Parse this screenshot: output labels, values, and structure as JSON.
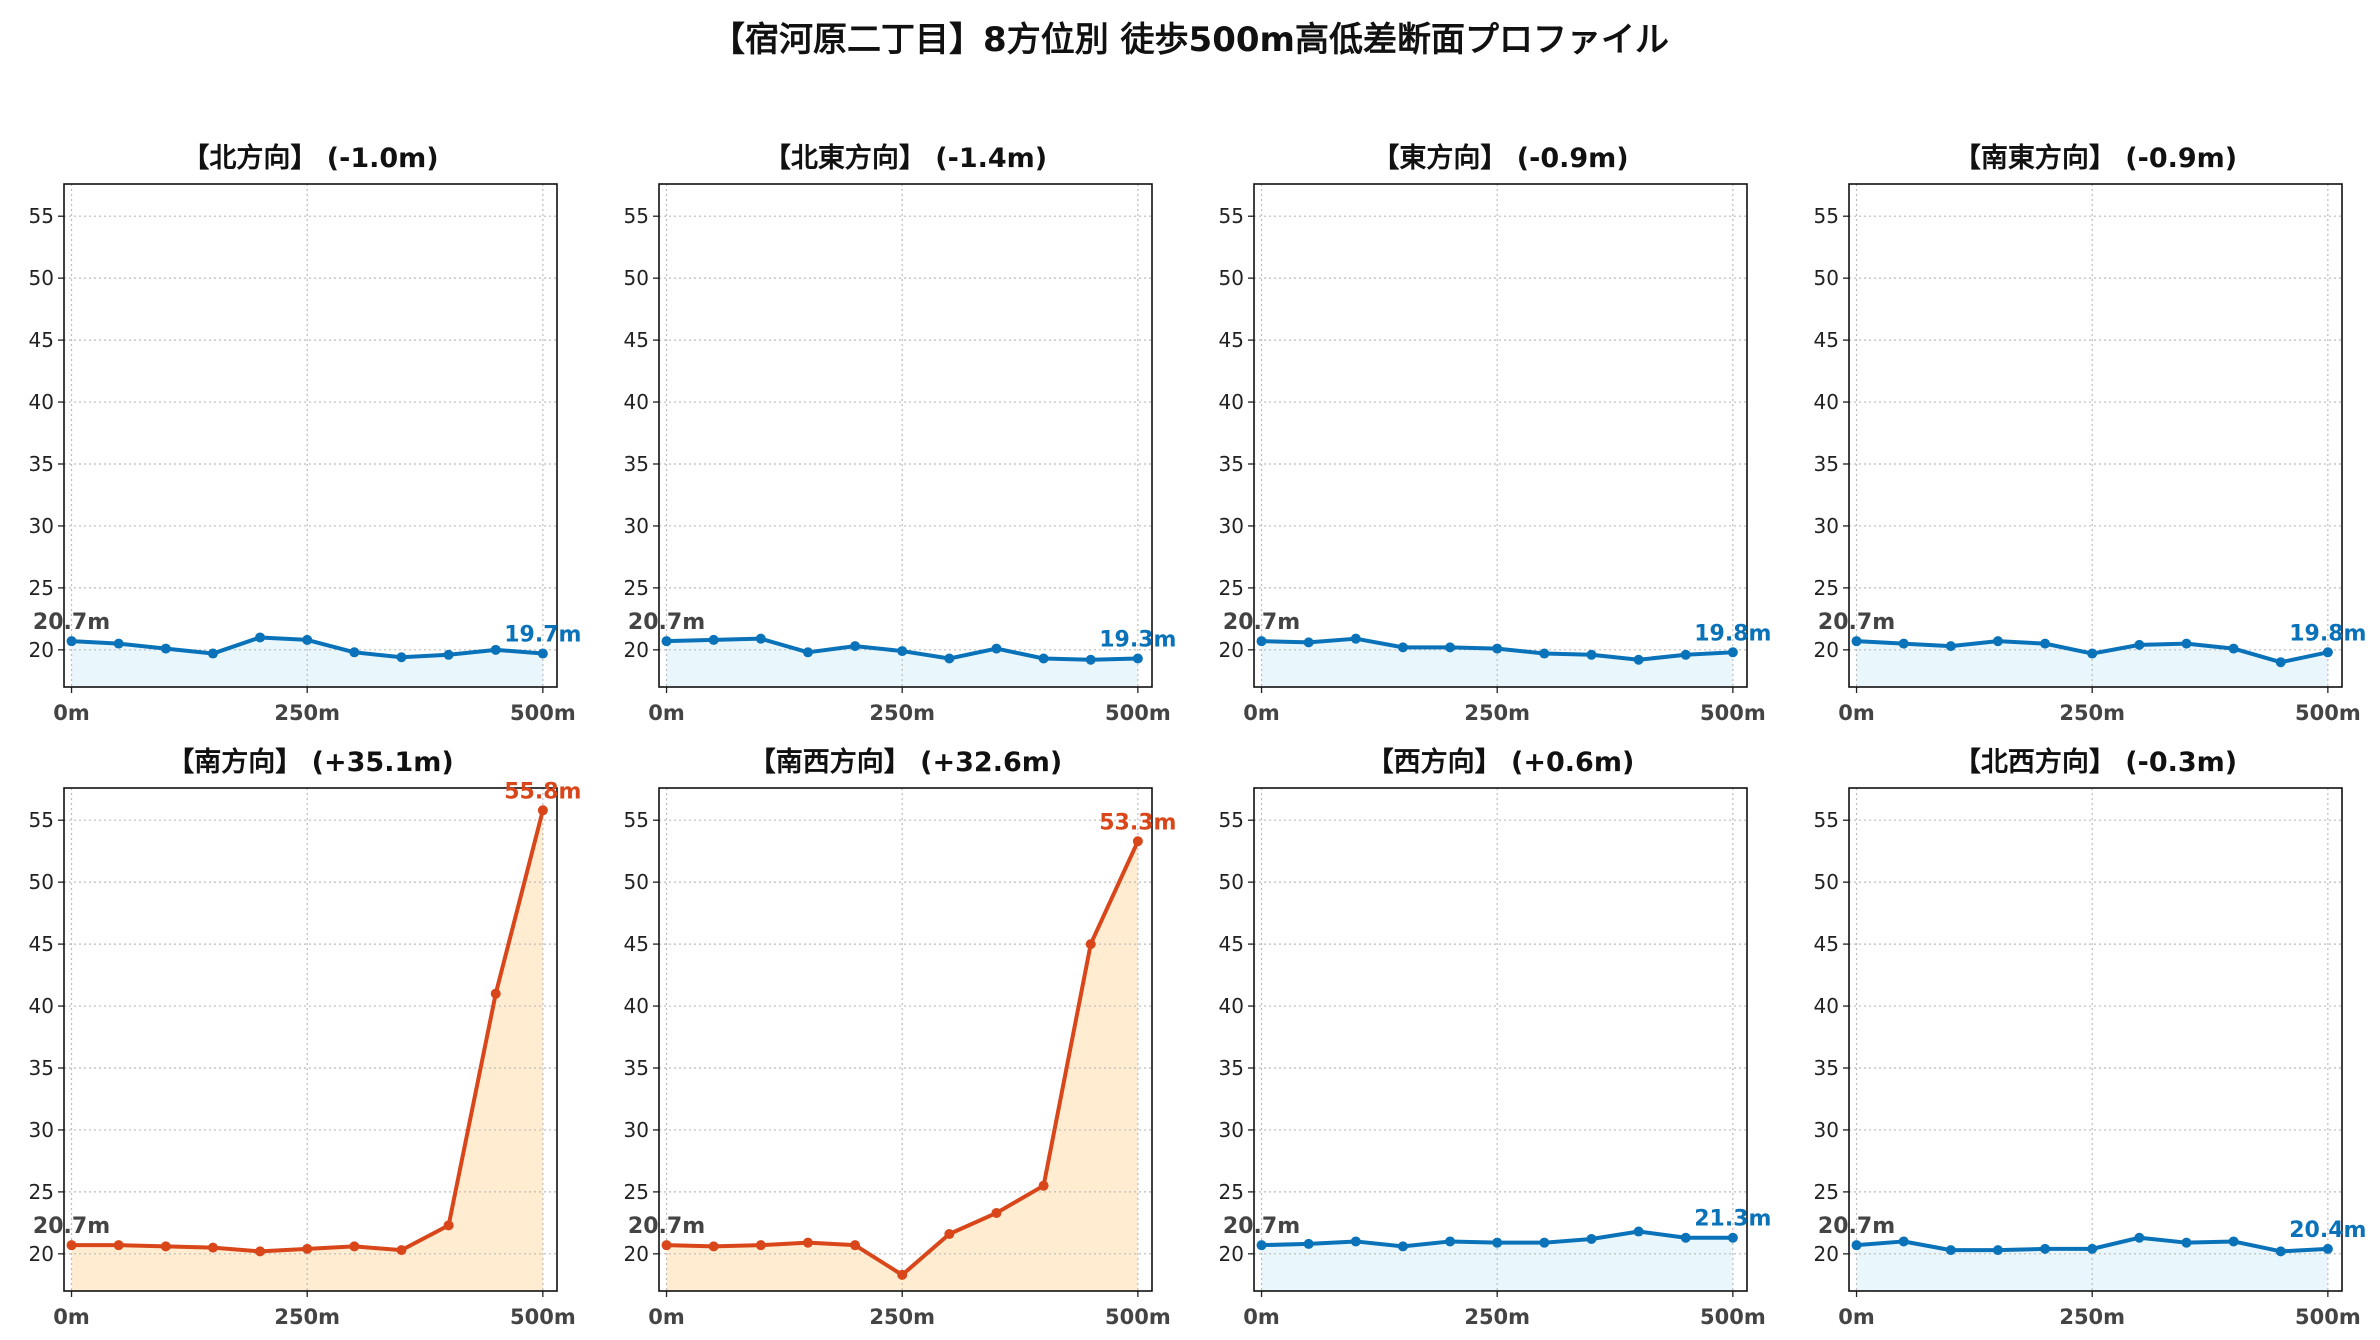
{
  "title": "【宿河原二丁目】8方位別 徒歩500m高低差断面プロファイル",
  "colors": {
    "flat_line": "#0a72b8",
    "flat_fill": "#e9f7fd",
    "steep_line": "#d8461a",
    "steep_fill": "#ffecd1",
    "start_label": "#444444",
    "grid": "#bbbbbb"
  },
  "chart_data": [
    {
      "type": "line",
      "title": "【北方向】 (-1.0m)",
      "x": [
        0,
        50,
        100,
        150,
        200,
        250,
        300,
        350,
        400,
        450,
        500
      ],
      "y": [
        20.7,
        20.5,
        20.1,
        19.7,
        21.0,
        20.8,
        19.8,
        19.4,
        19.6,
        20.0,
        19.7
      ],
      "xticks": [
        "0m",
        "250m",
        "500m"
      ],
      "yticks": [
        20,
        25,
        30,
        35,
        40,
        45,
        50,
        55
      ],
      "ylim": [
        17,
        57.6
      ],
      "xlim": [
        -8,
        515
      ],
      "start_label": "20.7m",
      "end_label": "19.7m",
      "style": "flat",
      "grid": true
    },
    {
      "type": "line",
      "title": "【北東方向】 (-1.4m)",
      "x": [
        0,
        50,
        100,
        150,
        200,
        250,
        300,
        350,
        400,
        450,
        500
      ],
      "y": [
        20.7,
        20.8,
        20.9,
        19.8,
        20.3,
        19.9,
        19.3,
        20.1,
        19.3,
        19.2,
        19.3
      ],
      "xticks": [
        "0m",
        "250m",
        "500m"
      ],
      "yticks": [
        20,
        25,
        30,
        35,
        40,
        45,
        50,
        55
      ],
      "ylim": [
        17,
        57.6
      ],
      "xlim": [
        -8,
        515
      ],
      "start_label": "20.7m",
      "end_label": "19.3m",
      "style": "flat",
      "grid": true
    },
    {
      "type": "line",
      "title": "【東方向】 (-0.9m)",
      "x": [
        0,
        50,
        100,
        150,
        200,
        250,
        300,
        350,
        400,
        450,
        500
      ],
      "y": [
        20.7,
        20.6,
        20.9,
        20.2,
        20.2,
        20.1,
        19.7,
        19.6,
        19.2,
        19.6,
        19.8
      ],
      "xticks": [
        "0m",
        "250m",
        "500m"
      ],
      "yticks": [
        20,
        25,
        30,
        35,
        40,
        45,
        50,
        55
      ],
      "ylim": [
        17,
        57.6
      ],
      "xlim": [
        -8,
        515
      ],
      "start_label": "20.7m",
      "end_label": "19.8m",
      "style": "flat",
      "grid": true
    },
    {
      "type": "line",
      "title": "【南東方向】 (-0.9m)",
      "x": [
        0,
        50,
        100,
        150,
        200,
        250,
        300,
        350,
        400,
        450,
        500
      ],
      "y": [
        20.7,
        20.5,
        20.3,
        20.7,
        20.5,
        19.7,
        20.4,
        20.5,
        20.1,
        19.0,
        19.8
      ],
      "xticks": [
        "0m",
        "250m",
        "500m"
      ],
      "yticks": [
        20,
        25,
        30,
        35,
        40,
        45,
        50,
        55
      ],
      "ylim": [
        17,
        57.6
      ],
      "xlim": [
        -8,
        515
      ],
      "start_label": "20.7m",
      "end_label": "19.8m",
      "style": "flat",
      "grid": true
    },
    {
      "type": "line",
      "title": "【南方向】 (+35.1m)",
      "x": [
        0,
        50,
        100,
        150,
        200,
        250,
        300,
        350,
        400,
        450,
        500
      ],
      "y": [
        20.7,
        20.7,
        20.6,
        20.5,
        20.2,
        20.4,
        20.6,
        20.3,
        22.3,
        41.0,
        55.8
      ],
      "xticks": [
        "0m",
        "250m",
        "500m"
      ],
      "yticks": [
        20,
        25,
        30,
        35,
        40,
        45,
        50,
        55
      ],
      "ylim": [
        17,
        57.6
      ],
      "xlim": [
        -8,
        515
      ],
      "start_label": "20.7m",
      "end_label": "55.8m",
      "style": "steep",
      "grid": true
    },
    {
      "type": "line",
      "title": "【南西方向】 (+32.6m)",
      "x": [
        0,
        50,
        100,
        150,
        200,
        250,
        300,
        350,
        400,
        450,
        500
      ],
      "y": [
        20.7,
        20.6,
        20.7,
        20.9,
        20.7,
        18.3,
        21.6,
        23.3,
        25.5,
        45.0,
        53.3
      ],
      "xticks": [
        "0m",
        "250m",
        "500m"
      ],
      "yticks": [
        20,
        25,
        30,
        35,
        40,
        45,
        50,
        55
      ],
      "ylim": [
        17,
        57.6
      ],
      "xlim": [
        -8,
        515
      ],
      "start_label": "20.7m",
      "end_label": "53.3m",
      "style": "steep",
      "grid": true
    },
    {
      "type": "line",
      "title": "【西方向】 (+0.6m)",
      "x": [
        0,
        50,
        100,
        150,
        200,
        250,
        300,
        350,
        400,
        450,
        500
      ],
      "y": [
        20.7,
        20.8,
        21.0,
        20.6,
        21.0,
        20.9,
        20.9,
        21.2,
        21.8,
        21.3,
        21.3
      ],
      "xticks": [
        "0m",
        "250m",
        "500m"
      ],
      "yticks": [
        20,
        25,
        30,
        35,
        40,
        45,
        50,
        55
      ],
      "ylim": [
        17,
        57.6
      ],
      "xlim": [
        -8,
        515
      ],
      "start_label": "20.7m",
      "end_label": "21.3m",
      "style": "flat",
      "grid": true
    },
    {
      "type": "line",
      "title": "【北西方向】 (-0.3m)",
      "x": [
        0,
        50,
        100,
        150,
        200,
        250,
        300,
        350,
        400,
        450,
        500
      ],
      "y": [
        20.7,
        21.0,
        20.3,
        20.3,
        20.4,
        20.4,
        21.3,
        20.9,
        21.0,
        20.2,
        20.4
      ],
      "xticks": [
        "0m",
        "250m",
        "500m"
      ],
      "yticks": [
        20,
        25,
        30,
        35,
        40,
        45,
        50,
        55
      ],
      "ylim": [
        17,
        57.6
      ],
      "xlim": [
        -8,
        515
      ],
      "start_label": "20.7m",
      "end_label": "20.4m",
      "style": "flat",
      "grid": true
    }
  ]
}
